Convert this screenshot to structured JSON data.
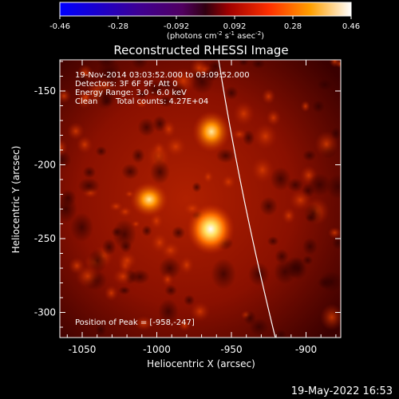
{
  "colorbar": {
    "ticks": [
      "-0.46",
      "-0.28",
      "-0.092",
      "0.092",
      "0.28",
      "0.46"
    ],
    "unit_prefix": "(photons cm",
    "unit_sup1": "-2",
    "unit_mid": " s",
    "unit_sup2": "-1",
    "unit_mid2": " asec",
    "unit_sup3": "-2",
    "unit_suffix": ")"
  },
  "title": "Reconstructed RHESSI Image",
  "info": {
    "line1": "19-Nov-2014 03:03:52.000 to 03:09:52.000",
    "line2": "Detectors: 3F 6F 9F, Att 0",
    "line3": "Energy Range: 3.0 - 6.0 keV",
    "line4_a": "Clean",
    "line4_b": "Total counts: 4.27E+04",
    "peak": "Position of Peak = [-958,-247]"
  },
  "axes": {
    "xlabel": "Heliocentric X (arcsec)",
    "ylabel": "Heliocentric Y (arcsec)",
    "xticks": [
      "-1050",
      "-1000",
      "-950",
      "-900"
    ],
    "yticks": [
      "-150",
      "-200",
      "-250",
      "-300"
    ]
  },
  "timestamp": "19-May-2022 16:53"
}
